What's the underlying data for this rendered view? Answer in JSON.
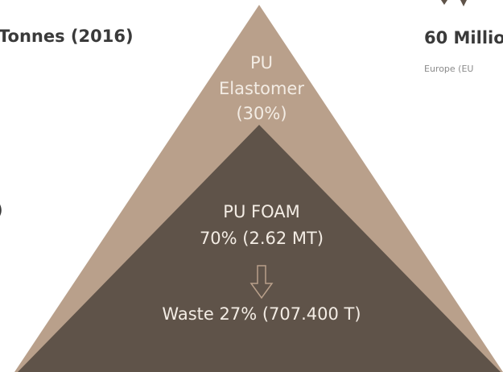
{
  "left_panel": {
    "title": "Tonnes (2016)",
    "fragment": ")"
  },
  "right_panel": {
    "title": "60 Millio",
    "subtitle": "Europe (EU"
  },
  "pyramid": {
    "top": {
      "lines": [
        "PU",
        "Elastomer",
        "(30%)"
      ]
    },
    "bottom": {
      "lines": [
        "PU FOAM",
        "70% (2.62 MT)"
      ],
      "waste": "Waste 27% (707.400 T)"
    }
  }
}
